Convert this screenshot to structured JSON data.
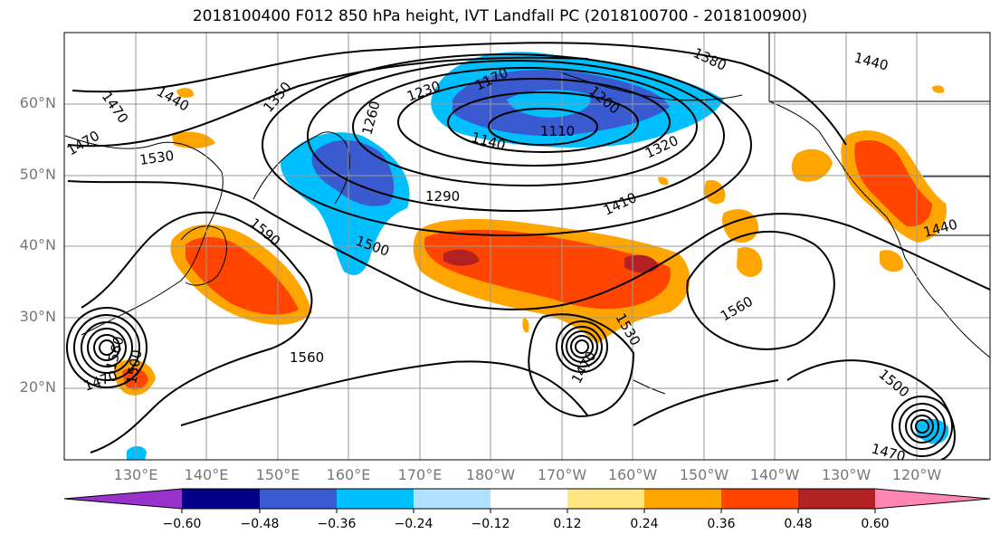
{
  "title": "2018100400 F012 850 hPa height, IVT Landfall PC (2018100700 - 2018100900)",
  "map": {
    "latitude_labels": [
      "60°N",
      "50°N",
      "40°N",
      "30°N",
      "20°N"
    ],
    "longitude_labels": [
      "130°E",
      "140°E",
      "150°E",
      "160°E",
      "170°E",
      "180°W",
      "170°W",
      "160°W",
      "150°W",
      "140°W",
      "130°W",
      "120°W"
    ],
    "contour_labels": [
      "1380",
      "1440",
      "1350",
      "1230",
      "1170",
      "1200",
      "1140",
      "1110",
      "1260",
      "1320",
      "1470",
      "1440",
      "1530",
      "1470",
      "1290",
      "1410",
      "1590",
      "1500",
      "1440",
      "1560",
      "1530",
      "1560",
      "1500",
      "1470",
      "1500",
      "1560",
      "1470",
      "1470"
    ]
  },
  "colorbar": {
    "ticks": [
      "−0.60",
      "−0.48",
      "−0.36",
      "−0.24",
      "−0.12",
      "0.12",
      "0.24",
      "0.36",
      "0.48",
      "0.60"
    ],
    "colors": [
      "#9932cc",
      "#00008b",
      "#3a5bd0",
      "#00bfff",
      "#b0e2ff",
      "#ffffff",
      "#ffe680",
      "#ffa500",
      "#ff4500",
      "#b22222",
      "#ff85b3"
    ]
  }
}
